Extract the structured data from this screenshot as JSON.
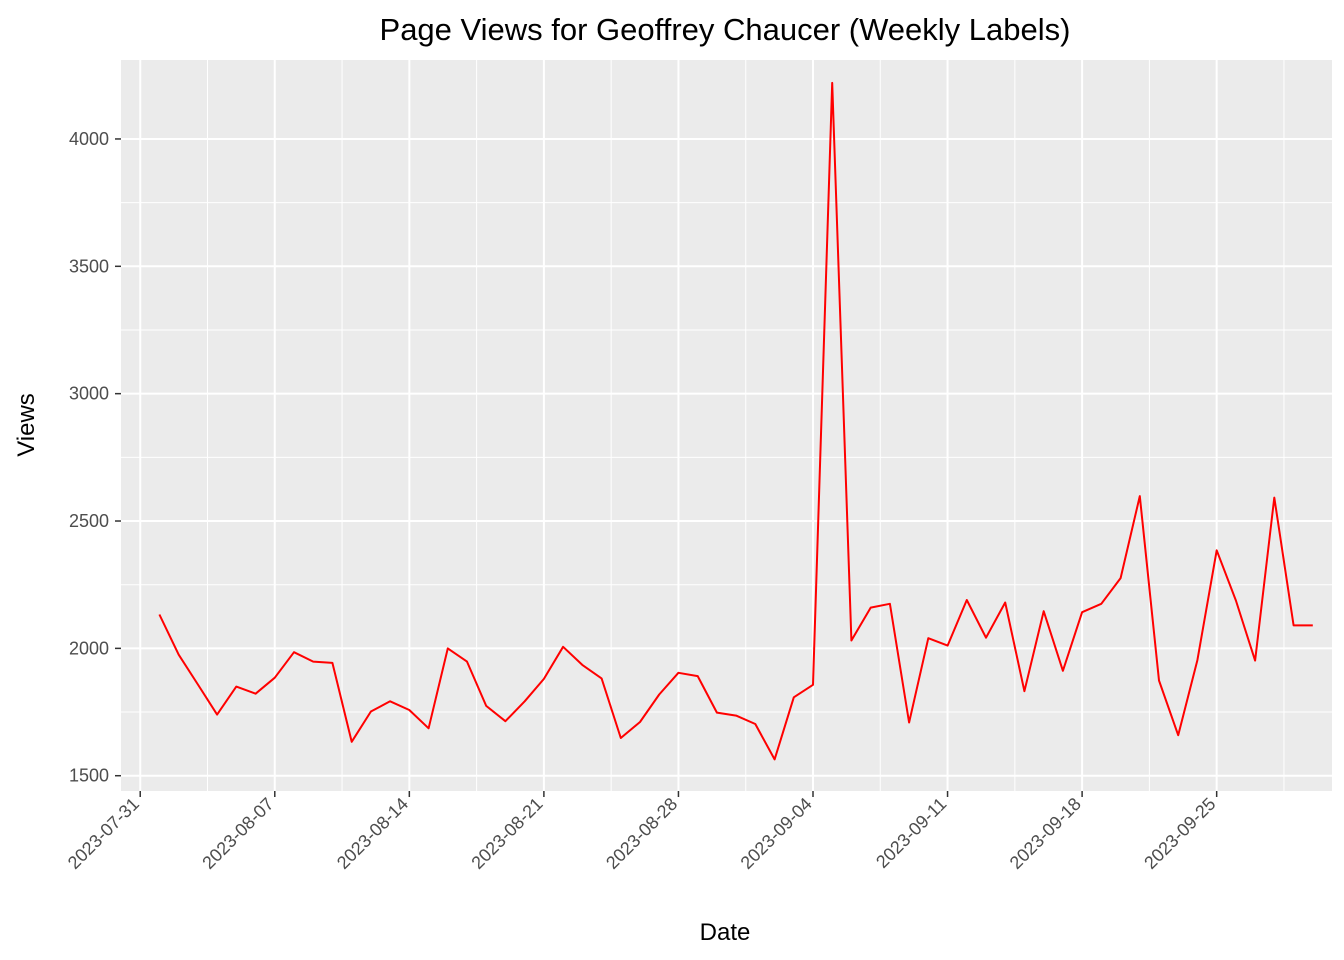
{
  "chart_data": {
    "type": "line",
    "title": "Page Views for Geoffrey Chaucer (Weekly Labels)",
    "xlabel": "Date",
    "ylabel": "Views",
    "x_ticks": [
      "2023-07-31",
      "2023-08-07",
      "2023-08-14",
      "2023-08-21",
      "2023-08-28",
      "2023-09-04",
      "2023-09-11",
      "2023-09-18",
      "2023-09-25"
    ],
    "y_ticks": [
      1500,
      2000,
      2500,
      3000,
      3500,
      4000
    ],
    "ylim": [
      1440,
      4310
    ],
    "xlim": [
      "2023-07-30",
      "2023-10-01"
    ],
    "grid": true,
    "line_color": "#ff0000",
    "panel_color": "#ebebeb",
    "series": [
      {
        "x": [
          "2023-08-01",
          "2023-08-02",
          "2023-08-03",
          "2023-08-04",
          "2023-08-05",
          "2023-08-06",
          "2023-08-07",
          "2023-08-08",
          "2023-08-09",
          "2023-08-10",
          "2023-08-11",
          "2023-08-12",
          "2023-08-13",
          "2023-08-14",
          "2023-08-15",
          "2023-08-16",
          "2023-08-17",
          "2023-08-18",
          "2023-08-19",
          "2023-08-20",
          "2023-08-21",
          "2023-08-22",
          "2023-08-23",
          "2023-08-24",
          "2023-08-25",
          "2023-08-26",
          "2023-08-27",
          "2023-08-28",
          "2023-08-29",
          "2023-08-30",
          "2023-08-31",
          "2023-09-01",
          "2023-09-02",
          "2023-09-03",
          "2023-09-04",
          "2023-09-05",
          "2023-09-06",
          "2023-09-07",
          "2023-09-08",
          "2023-09-09",
          "2023-09-10",
          "2023-09-11",
          "2023-09-12",
          "2023-09-13",
          "2023-09-14",
          "2023-09-15",
          "2023-09-16",
          "2023-09-17",
          "2023-09-18",
          "2023-09-19",
          "2023-09-20",
          "2023-09-21",
          "2023-09-22",
          "2023-09-23",
          "2023-09-24",
          "2023-09-25",
          "2023-09-26",
          "2023-09-27",
          "2023-09-28",
          "2023-09-29",
          "2023-09-30"
        ],
        "values": [
          2133,
          1975,
          1858,
          1740,
          1850,
          1822,
          1885,
          1985,
          1948,
          1943,
          1633,
          1752,
          1792,
          1758,
          1686,
          2000,
          1948,
          1774,
          1714,
          1792,
          1880,
          2006,
          1935,
          1882,
          1648,
          1711,
          1819,
          1904,
          1891,
          1748,
          1736,
          1703,
          1564,
          1808,
          1857,
          4220,
          2031,
          2160,
          2175,
          1709,
          2040,
          2011,
          2190,
          2042,
          2180,
          1832,
          2146,
          1912,
          2142,
          2175,
          2276,
          2598,
          1874,
          1659,
          1954,
          2385,
          2188,
          1952,
          2592,
          2090,
          2090
        ]
      }
    ]
  }
}
